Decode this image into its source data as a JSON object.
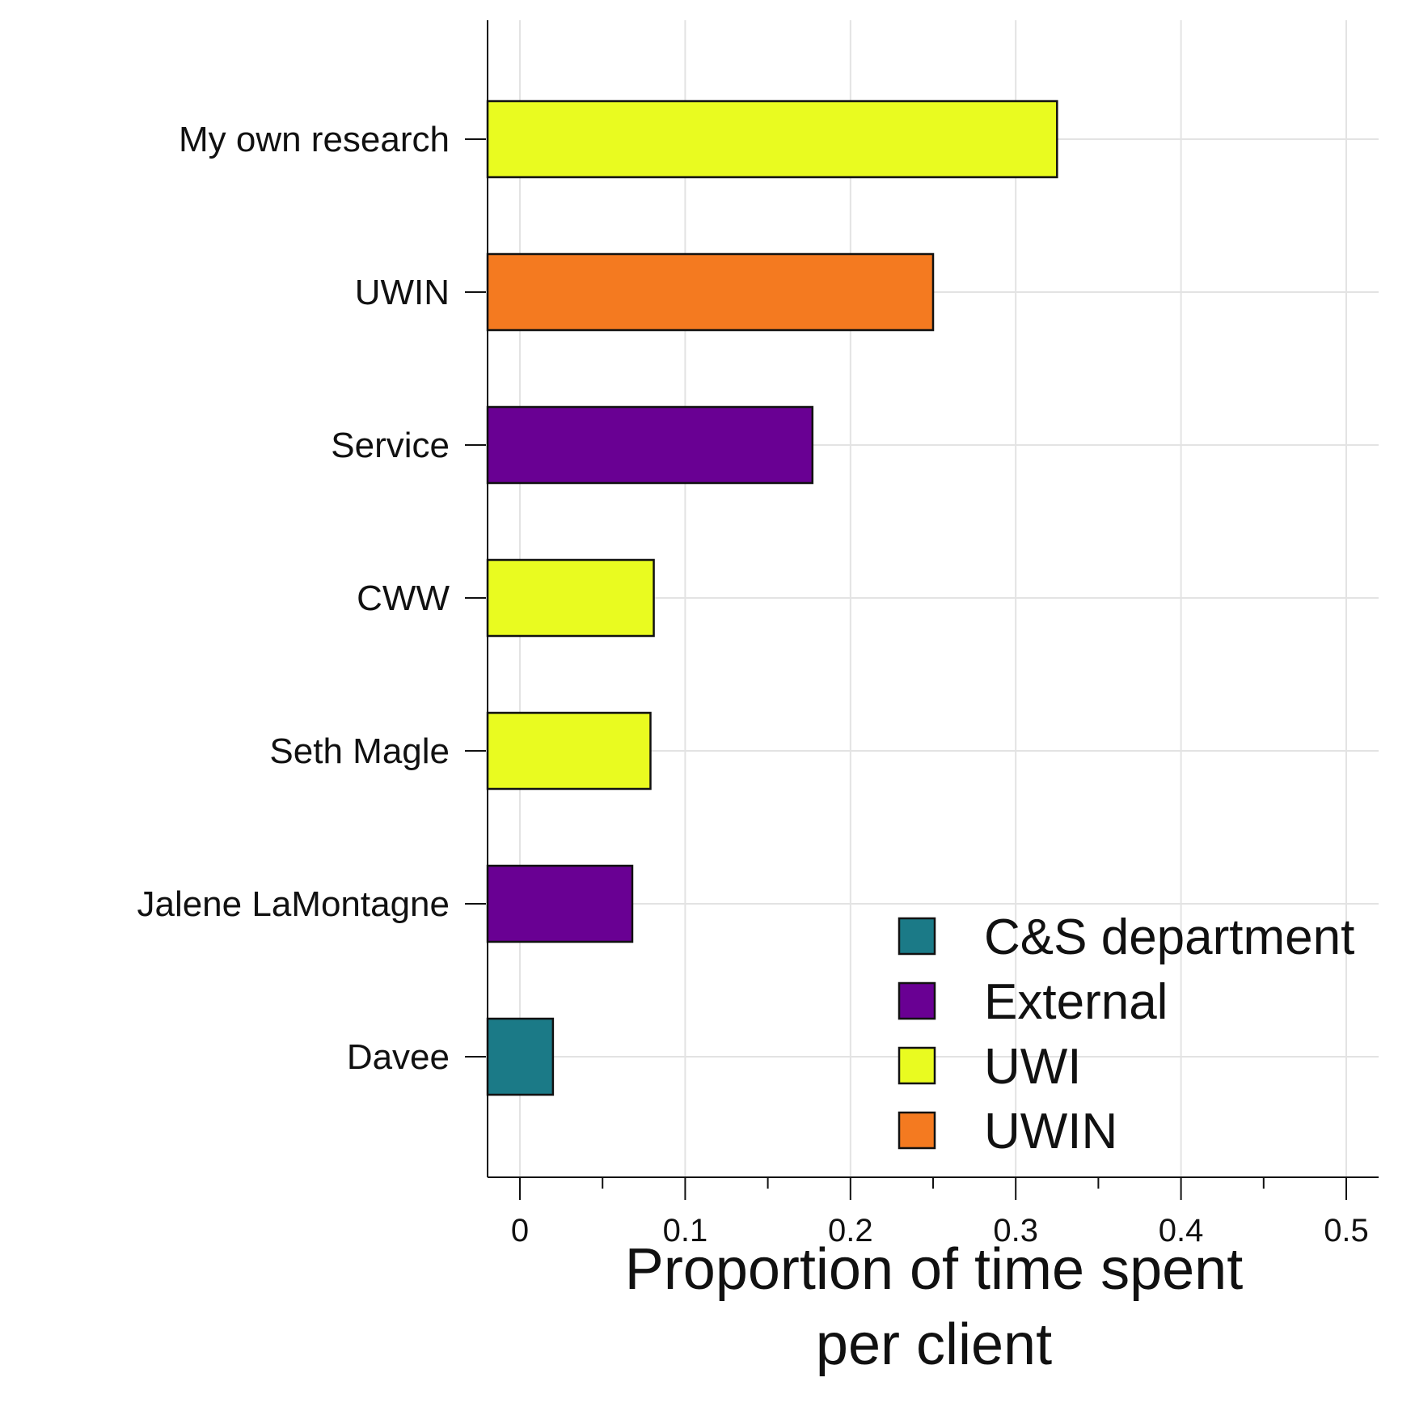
{
  "chart_data": {
    "type": "bar",
    "orientation": "horizontal",
    "categories": [
      "My own research",
      "UWIN",
      "Service",
      "CWW",
      "Seth Magle",
      "Jalene LaMontagne",
      "Davee"
    ],
    "values": [
      0.325,
      0.25,
      0.177,
      0.081,
      0.079,
      0.068,
      0.02
    ],
    "groups": [
      "UWI",
      "UWIN",
      "External",
      "UWI",
      "UWI",
      "External",
      "C&S department"
    ],
    "xlabel_lines": [
      "Proportion of time spent",
      "per client"
    ],
    "ylabel": "",
    "xlim": [
      -0.02,
      0.52
    ],
    "x_ticks": [
      0,
      0.1,
      0.2,
      0.3,
      0.4,
      0.5
    ],
    "x_tick_labels": [
      "0",
      "0.1",
      "0.2",
      "0.3",
      "0.4",
      "0.5"
    ],
    "x_minor_ticks": [
      0.05,
      0.15,
      0.25,
      0.35,
      0.45
    ],
    "grid": true,
    "legend": {
      "placement": "bottom-right",
      "entries": [
        {
          "label": "C&S department",
          "color": "#1b7a87"
        },
        {
          "label": "External",
          "color": "#690093"
        },
        {
          "label": "UWI",
          "color": "#e9fb20"
        },
        {
          "label": "UWIN",
          "color": "#f47a20"
        }
      ]
    },
    "colors": {
      "bar_outline": "#111111",
      "grid": "#e3e3e3",
      "axis": "#111111"
    }
  }
}
